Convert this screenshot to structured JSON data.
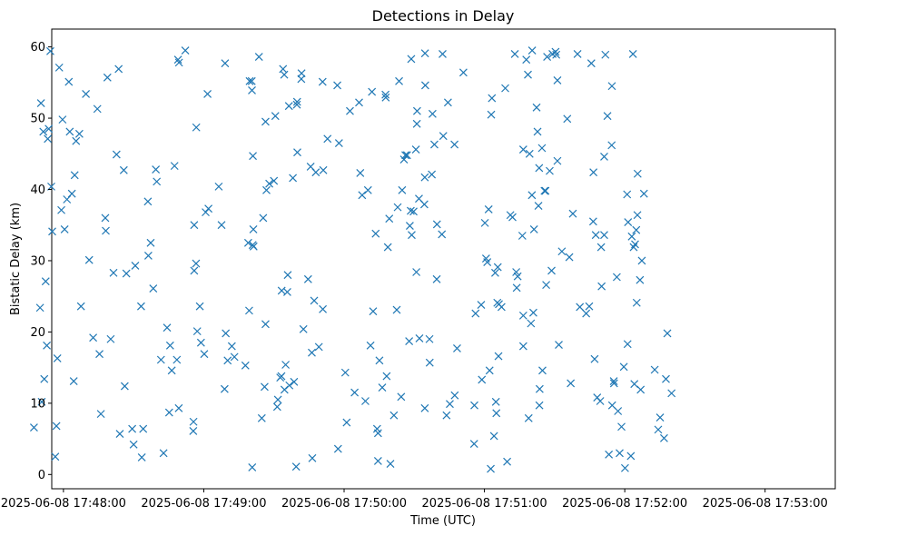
{
  "chart_data": {
    "type": "scatter",
    "title": "Detections in Delay",
    "xlabel": "Time (UTC)",
    "ylabel": "Bistatic Delay (km)",
    "marker": "x",
    "color": "#1f77b4",
    "xlim": [
      -5,
      330
    ],
    "ylim": [
      -2,
      62.5
    ],
    "x_unit": "seconds after 2025-06-08 17:48:00",
    "xticks": [
      {
        "value": 0,
        "label": "2025-06-08 17:48:00"
      },
      {
        "value": 60,
        "label": "2025-06-08 17:49:00"
      },
      {
        "value": 120,
        "label": "2025-06-08 17:50:00"
      },
      {
        "value": 180,
        "label": "2025-06-08 17:51:00"
      },
      {
        "value": 240,
        "label": "2025-06-08 17:52:00"
      },
      {
        "value": 300,
        "label": "2025-06-08 17:53:00"
      }
    ],
    "yticks": [
      {
        "value": 0,
        "label": "0"
      },
      {
        "value": 10,
        "label": "10"
      },
      {
        "value": 20,
        "label": "20"
      },
      {
        "value": 30,
        "label": "30"
      },
      {
        "value": 40,
        "label": "40"
      },
      {
        "value": 50,
        "label": "50"
      },
      {
        "value": 60,
        "label": "60"
      }
    ],
    "points": [
      [
        -12.6,
        6.6
      ],
      [
        -10,
        23.4
      ],
      [
        -9.6,
        52.1
      ],
      [
        -9.3,
        10.2
      ],
      [
        -8.6,
        48.1
      ],
      [
        -8.2,
        13.4
      ],
      [
        -7.6,
        27.1
      ],
      [
        -7.1,
        18.1
      ],
      [
        -6.7,
        47.1
      ],
      [
        -6.3,
        48.5
      ],
      [
        -5.6,
        59.4
      ],
      [
        -5.2,
        40.4
      ],
      [
        -4.8,
        34.1
      ],
      [
        -3.5,
        2.5
      ],
      [
        -3,
        6.8
      ],
      [
        -2.6,
        16.3
      ],
      [
        -1.8,
        57.1
      ],
      [
        -0.9,
        37.1
      ],
      [
        -0.4,
        49.8
      ],
      [
        0.5,
        34.4
      ],
      [
        1.5,
        38.6
      ],
      [
        2.3,
        55.1
      ],
      [
        2.7,
        48.1
      ],
      [
        3.6,
        39.4
      ],
      [
        4.4,
        13.1
      ],
      [
        4.8,
        42
      ],
      [
        5.4,
        46.8
      ],
      [
        6.8,
        47.8
      ],
      [
        7.5,
        23.6
      ],
      [
        9.6,
        53.4
      ],
      [
        11,
        30.1
      ],
      [
        12.7,
        19.2
      ],
      [
        14.5,
        51.3
      ],
      [
        15.4,
        16.9
      ],
      [
        16,
        8.5
      ],
      [
        17.9,
        36
      ],
      [
        18.1,
        34.2
      ],
      [
        18.8,
        55.7
      ],
      [
        20.2,
        19
      ],
      [
        21.4,
        28.3
      ],
      [
        22.7,
        44.9
      ],
      [
        23.6,
        56.9
      ],
      [
        24.1,
        5.7
      ],
      [
        25.8,
        42.7
      ],
      [
        26.2,
        12.4
      ],
      [
        26.9,
        28.2
      ],
      [
        29.4,
        6.4
      ],
      [
        30,
        4.2
      ],
      [
        30.7,
        29.3
      ],
      [
        33.2,
        23.6
      ],
      [
        33.5,
        2.4
      ],
      [
        34.1,
        6.4
      ],
      [
        36.1,
        38.3
      ],
      [
        36.3,
        30.7
      ],
      [
        37.3,
        32.5
      ],
      [
        38.4,
        26.1
      ],
      [
        39.5,
        42.8
      ],
      [
        39.9,
        41.1
      ],
      [
        41.7,
        16.1
      ],
      [
        42.8,
        3
      ],
      [
        44.3,
        20.6
      ],
      [
        45.2,
        8.7
      ],
      [
        45.6,
        18.1
      ],
      [
        46.3,
        14.6
      ],
      [
        47.5,
        43.3
      ],
      [
        48.5,
        16.1
      ],
      [
        49,
        58.2
      ],
      [
        49.3,
        9.3
      ],
      [
        49.4,
        57.8
      ],
      [
        52.1,
        59.5
      ],
      [
        55.5,
        6.1
      ],
      [
        55.6,
        7.4
      ],
      [
        55.9,
        28.6
      ],
      [
        55.9,
        35
      ],
      [
        56.7,
        29.6
      ],
      [
        56.8,
        48.7
      ],
      [
        57.2,
        20.1
      ],
      [
        58.3,
        23.6
      ],
      [
        58.8,
        18.5
      ],
      [
        60.2,
        16.9
      ],
      [
        60.8,
        36.8
      ],
      [
        61.6,
        53.4
      ],
      [
        62,
        37.3
      ],
      [
        66.4,
        40.4
      ],
      [
        67.6,
        35
      ],
      [
        68.9,
        12
      ],
      [
        69.1,
        57.7
      ],
      [
        69.4,
        19.8
      ],
      [
        70.2,
        16
      ],
      [
        72,
        18
      ],
      [
        73.1,
        16.5
      ],
      [
        77.8,
        15.3
      ],
      [
        79,
        32.5
      ],
      [
        79.4,
        23
      ],
      [
        79.6,
        55.2
      ],
      [
        80.5,
        55.2
      ],
      [
        80.6,
        53.9
      ],
      [
        80.7,
        1
      ],
      [
        80.9,
        32.2
      ],
      [
        81,
        44.7
      ],
      [
        81.2,
        34.4
      ],
      [
        81.3,
        32
      ],
      [
        83.6,
        58.6
      ],
      [
        84.8,
        7.9
      ],
      [
        85.4,
        36
      ],
      [
        86,
        12.3
      ],
      [
        86.4,
        21.1
      ],
      [
        86.4,
        49.5
      ],
      [
        86.8,
        39.9
      ],
      [
        88,
        40.8
      ],
      [
        90,
        41.2
      ],
      [
        90.6,
        50.3
      ],
      [
        91.4,
        9.5
      ],
      [
        91.7,
        10.5
      ],
      [
        92.7,
        13.6
      ],
      [
        93.2,
        13.8
      ],
      [
        93.3,
        25.8
      ],
      [
        93.9,
        56.9
      ],
      [
        94.4,
        56.1
      ],
      [
        94.5,
        11.9
      ],
      [
        95,
        15.4
      ],
      [
        95.7,
        25.6
      ],
      [
        95.9,
        28
      ],
      [
        96.4,
        51.7
      ],
      [
        96.6,
        12.5
      ],
      [
        98.1,
        41.6
      ],
      [
        98.6,
        13
      ],
      [
        99.5,
        1.1
      ],
      [
        99.8,
        51.9
      ],
      [
        99.9,
        52.3
      ],
      [
        100,
        45.2
      ],
      [
        101.7,
        55.5
      ],
      [
        101.8,
        56.3
      ],
      [
        102.6,
        20.4
      ],
      [
        104.6,
        27.4
      ],
      [
        105.7,
        43.2
      ],
      [
        106.2,
        17.1
      ],
      [
        106.4,
        2.3
      ],
      [
        107.2,
        24.4
      ],
      [
        107.9,
        42.4
      ],
      [
        109.2,
        17.9
      ],
      [
        110.8,
        55.1
      ],
      [
        110.9,
        23.2
      ],
      [
        111.1,
        42.7
      ],
      [
        112.9,
        47.1
      ],
      [
        117.1,
        54.6
      ],
      [
        117.4,
        3.6
      ],
      [
        117.8,
        46.5
      ],
      [
        120.5,
        14.3
      ],
      [
        121.1,
        7.3
      ],
      [
        122.5,
        51
      ],
      [
        124.5,
        11.5
      ],
      [
        126.4,
        52.2
      ],
      [
        126.9,
        42.3
      ],
      [
        127.7,
        39.2
      ],
      [
        129.1,
        10.3
      ],
      [
        130.2,
        39.9
      ],
      [
        131.3,
        18.1
      ],
      [
        131.9,
        53.7
      ],
      [
        132.4,
        22.9
      ],
      [
        133.5,
        33.8
      ],
      [
        134.1,
        6.4
      ],
      [
        134.5,
        5.8
      ],
      [
        134.5,
        1.9
      ],
      [
        135.1,
        16
      ],
      [
        136.3,
        12.2
      ],
      [
        137.7,
        53.3
      ],
      [
        137.8,
        52.9
      ],
      [
        138.2,
        13.8
      ],
      [
        138.7,
        31.9
      ],
      [
        139.3,
        35.9
      ],
      [
        139.8,
        1.5
      ],
      [
        141.3,
        8.3
      ],
      [
        142.5,
        23.1
      ],
      [
        142.9,
        37.5
      ],
      [
        143.5,
        55.2
      ],
      [
        144.4,
        10.9
      ],
      [
        144.8,
        39.9
      ],
      [
        145.6,
        44.2
      ],
      [
        146.2,
        44.8
      ],
      [
        146.9,
        44.8
      ],
      [
        147.8,
        18.7
      ],
      [
        148.1,
        34.9
      ],
      [
        148.5,
        37
      ],
      [
        148.7,
        58.3
      ],
      [
        148.9,
        33.6
      ],
      [
        149.7,
        36.9
      ],
      [
        150.7,
        45.6
      ],
      [
        150.9,
        28.4
      ],
      [
        151.1,
        49.2
      ],
      [
        151.2,
        51
      ],
      [
        152,
        38.7
      ],
      [
        152.2,
        19.1
      ],
      [
        154.3,
        37.9
      ],
      [
        154.5,
        41.7
      ],
      [
        154.5,
        9.3
      ],
      [
        154.6,
        59.1
      ],
      [
        154.7,
        54.6
      ],
      [
        156.5,
        19
      ],
      [
        156.6,
        15.7
      ],
      [
        157.5,
        42.1
      ],
      [
        157.8,
        50.6
      ],
      [
        158.6,
        46.3
      ],
      [
        159.6,
        27.4
      ],
      [
        159.7,
        35.1
      ],
      [
        161.8,
        33.7
      ],
      [
        162.1,
        59
      ],
      [
        162.4,
        47.5
      ],
      [
        163.8,
        8.3
      ],
      [
        164.4,
        52.2
      ],
      [
        165.2,
        9.9
      ],
      [
        167.2,
        46.3
      ],
      [
        167.3,
        11.1
      ],
      [
        168.3,
        17.7
      ],
      [
        171,
        56.4
      ],
      [
        175.6,
        4.3
      ],
      [
        175.7,
        9.7
      ],
      [
        176.2,
        22.6
      ],
      [
        178.6,
        23.8
      ],
      [
        178.9,
        13.3
      ],
      [
        180.2,
        35.3
      ],
      [
        180.7,
        30.3
      ],
      [
        181.2,
        29.8
      ],
      [
        181.8,
        37.2
      ],
      [
        182.2,
        14.6
      ],
      [
        182.7,
        0.8
      ],
      [
        182.9,
        50.5
      ],
      [
        183.2,
        52.8
      ],
      [
        184.1,
        5.4
      ],
      [
        184.6,
        28.3
      ],
      [
        184.9,
        10.2
      ],
      [
        185.1,
        8.6
      ],
      [
        185.5,
        24.1
      ],
      [
        185.7,
        29.1
      ],
      [
        186,
        16.6
      ],
      [
        186.2,
        23.9
      ],
      [
        187.3,
        23.5
      ],
      [
        188.9,
        54.2
      ],
      [
        189.7,
        1.8
      ],
      [
        191.1,
        36.4
      ],
      [
        192,
        36.1
      ],
      [
        193,
        59
      ],
      [
        193.6,
        28.4
      ],
      [
        193.8,
        26.2
      ],
      [
        194.2,
        27.8
      ],
      [
        196.2,
        33.5
      ],
      [
        196.6,
        45.6
      ],
      [
        196.6,
        18
      ],
      [
        196.6,
        22.3
      ],
      [
        197.9,
        58.2
      ],
      [
        198.6,
        56.1
      ],
      [
        198.9,
        7.9
      ],
      [
        199.3,
        45
      ],
      [
        199.9,
        21.2
      ],
      [
        200.3,
        39.2
      ],
      [
        200.4,
        59.5
      ],
      [
        200.9,
        22.7
      ],
      [
        201.2,
        34.4
      ],
      [
        202.3,
        51.5
      ],
      [
        202.7,
        48.1
      ],
      [
        203.1,
        37.7
      ],
      [
        203.4,
        43
      ],
      [
        203.5,
        9.7
      ],
      [
        203.6,
        12
      ],
      [
        204.6,
        45.8
      ],
      [
        204.8,
        14.6
      ],
      [
        205.7,
        39.8
      ],
      [
        206.1,
        39.8
      ],
      [
        206.4,
        26.6
      ],
      [
        206.8,
        58.6
      ],
      [
        207.9,
        42.6
      ],
      [
        208.7,
        28.6
      ],
      [
        209.1,
        59
      ],
      [
        210.4,
        59.3
      ],
      [
        210.7,
        58.9
      ],
      [
        211.2,
        44
      ],
      [
        211.2,
        55.3
      ],
      [
        211.8,
        18.2
      ],
      [
        213.1,
        31.3
      ],
      [
        215.4,
        49.9
      ],
      [
        216.3,
        30.5
      ],
      [
        216.9,
        12.8
      ],
      [
        217.8,
        36.6
      ],
      [
        219.8,
        59
      ],
      [
        220.8,
        23.5
      ],
      [
        223.5,
        22.6
      ],
      [
        224.8,
        23.6
      ],
      [
        225.7,
        57.7
      ],
      [
        226.5,
        35.5
      ],
      [
        226.6,
        42.4
      ],
      [
        227.1,
        16.2
      ],
      [
        227.6,
        33.6
      ],
      [
        228.2,
        10.8
      ],
      [
        229.5,
        10.3
      ],
      [
        229.9,
        31.9
      ],
      [
        230.1,
        26.4
      ],
      [
        231.2,
        33.6
      ],
      [
        231.2,
        44.6
      ],
      [
        231.7,
        58.9
      ],
      [
        232.6,
        50.3
      ],
      [
        233.2,
        2.8
      ],
      [
        234.4,
        46.2
      ],
      [
        234.5,
        54.5
      ],
      [
        234.6,
        9.7
      ],
      [
        235.3,
        13.1
      ],
      [
        235.4,
        12.8
      ],
      [
        236.6,
        27.7
      ],
      [
        237.1,
        8.9
      ],
      [
        237.8,
        3
      ],
      [
        238.6,
        6.7
      ],
      [
        239.6,
        15.1
      ],
      [
        240.1,
        0.9
      ],
      [
        241,
        39.3
      ],
      [
        241.2,
        18.3
      ],
      [
        241.4,
        35.4
      ],
      [
        242.6,
        2.6
      ],
      [
        243,
        33.4
      ],
      [
        243.5,
        59
      ],
      [
        243.8,
        31.9
      ],
      [
        244.1,
        12.7
      ],
      [
        244.4,
        32.3
      ],
      [
        244.9,
        34.3
      ],
      [
        245.1,
        24.1
      ],
      [
        245.4,
        36.4
      ],
      [
        245.5,
        42.2
      ],
      [
        246.5,
        27.3
      ],
      [
        246.8,
        11.9
      ],
      [
        247.3,
        30
      ],
      [
        248.2,
        39.4
      ],
      [
        252.8,
        14.7
      ],
      [
        254.3,
        6.3
      ],
      [
        255.1,
        8
      ],
      [
        256.8,
        5.1
      ],
      [
        257.6,
        13.4
      ],
      [
        258.2,
        19.8
      ],
      [
        260,
        11.4
      ]
    ]
  }
}
